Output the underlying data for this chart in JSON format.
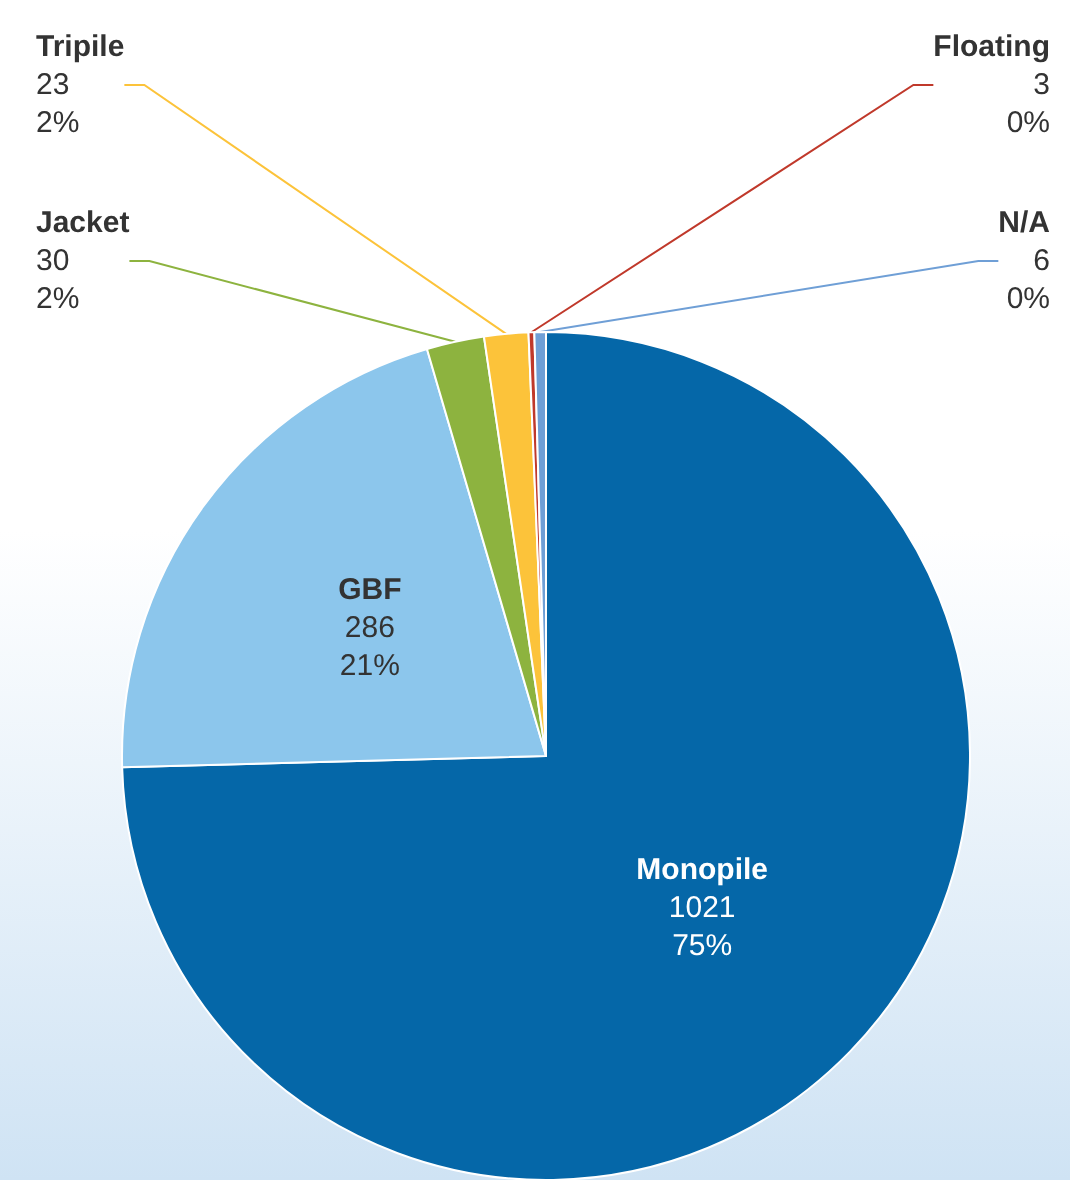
{
  "chart_data": {
    "type": "pie",
    "categories": [
      "Monopile",
      "GBF",
      "Jacket",
      "Tripile",
      "Floating",
      "N/A"
    ],
    "values": [
      1021,
      286,
      30,
      23,
      3,
      6
    ],
    "colors": [
      "#0567a8",
      "#8cc6ec",
      "#8db33f",
      "#fcc33a",
      "#c0392b",
      "#6f9fd6"
    ],
    "value_labels": [
      "1021\n75%",
      "286\n21%",
      "30\n2%",
      "23\n2%",
      "3\n0%",
      "6\n0%"
    ],
    "legend": false
  }
}
